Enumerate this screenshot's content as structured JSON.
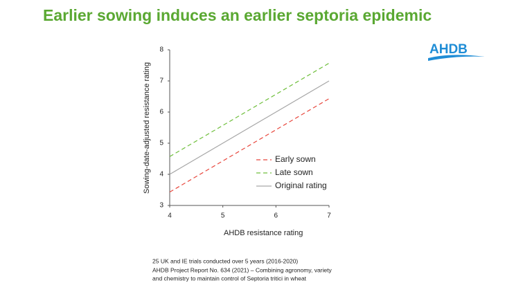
{
  "title": "Earlier sowing induces an earlier septoria epidemic",
  "logo": "AHDB",
  "notes": [
    "25 UK and IE trials conducted over 5 years (2016-2020)",
    "AHDB Project Report No. 634 (2021) – Combining agronomy, variety",
    "and chemistry to maintain control of Septoria tritici in wheat"
  ],
  "chart_data": {
    "type": "line",
    "x_label": "AHDB resistance rating",
    "y_label": "Sowing-date-adjusted resistance rating",
    "x": [
      4,
      7
    ],
    "series": [
      {
        "name": "Early sown",
        "color": "#e8463c",
        "line_style": "dashed",
        "values": [
          3.43,
          6.43
        ]
      },
      {
        "name": "Late sown",
        "color": "#6fbf3c",
        "line_style": "dashed",
        "values": [
          4.57,
          7.57
        ]
      },
      {
        "name": "Original rating",
        "color": "#a6a6a6",
        "line_style": "solid",
        "values": [
          4,
          7
        ]
      }
    ],
    "xlim": [
      4,
      7
    ],
    "xticks": [
      4,
      5,
      6,
      7
    ],
    "ylim": [
      3,
      8
    ],
    "yticks": [
      3,
      4,
      5,
      6,
      7,
      8
    ],
    "grid": false,
    "legend": "lower right"
  }
}
